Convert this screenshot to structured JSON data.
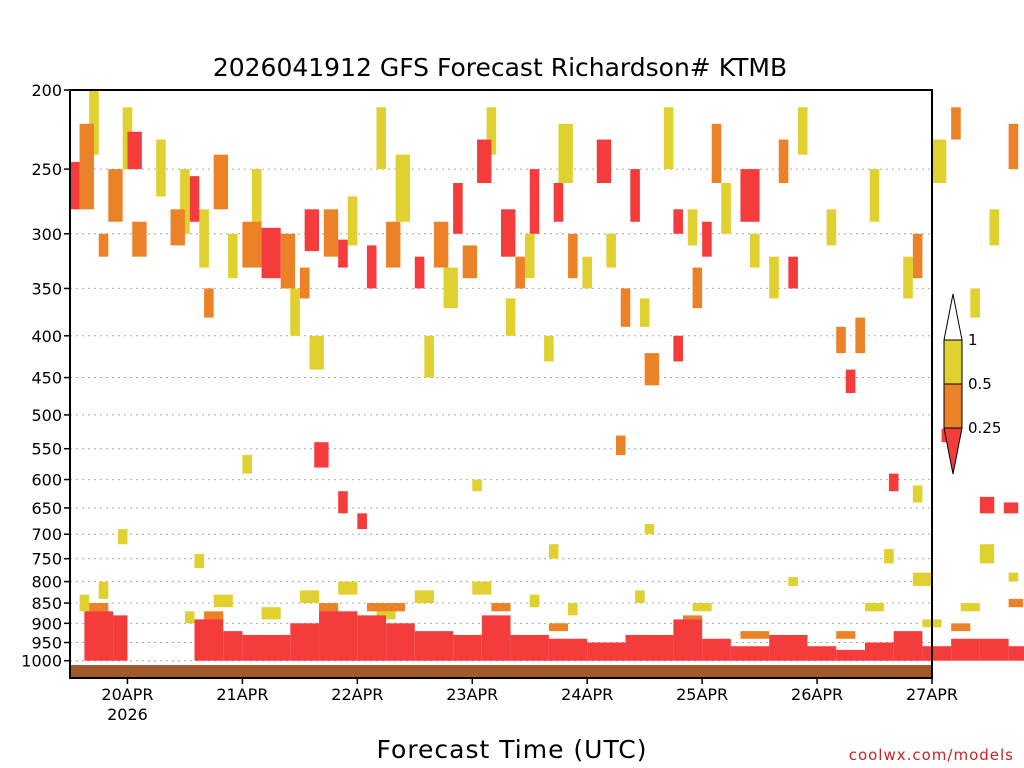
{
  "chart_data": {
    "type": "heatmap",
    "title": "2026041912 GFS Forecast Richardson# KTMB",
    "xlabel": "Forecast Time (UTC)",
    "ylabel": "",
    "credit": "coolwx.com/models",
    "y_scale": "pressure (log), inverted",
    "ylim": [
      1050,
      200
    ],
    "xlim_hours": [
      0,
      180
    ],
    "x_ticks": [
      {
        "label": "20APR",
        "sub": "2026",
        "hours": 12
      },
      {
        "label": "21APR",
        "sub": "",
        "hours": 36
      },
      {
        "label": "22APR",
        "sub": "",
        "hours": 60
      },
      {
        "label": "23APR",
        "sub": "",
        "hours": 84
      },
      {
        "label": "24APR",
        "sub": "",
        "hours": 108
      },
      {
        "label": "25APR",
        "sub": "",
        "hours": 132
      },
      {
        "label": "26APR",
        "sub": "",
        "hours": 156
      },
      {
        "label": "27APR",
        "sub": "",
        "hours": 180
      }
    ],
    "y_ticks": [
      {
        "label": "200",
        "value": 200
      },
      {
        "label": "250",
        "value": 250
      },
      {
        "label": "300",
        "value": 300
      },
      {
        "label": "350",
        "value": 350
      },
      {
        "label": "400",
        "value": 400
      },
      {
        "label": "450",
        "value": 450
      },
      {
        "label": "500",
        "value": 500
      },
      {
        "label": "550",
        "value": 550
      },
      {
        "label": "600",
        "value": 600
      },
      {
        "label": "650",
        "value": 650
      },
      {
        "label": "700",
        "value": 700
      },
      {
        "label": "750",
        "value": 750
      },
      {
        "label": "800",
        "value": 800
      },
      {
        "label": "850",
        "value": 850
      },
      {
        "label": "900",
        "value": 900
      },
      {
        "label": "950",
        "value": 950
      },
      {
        "label": "1000",
        "value": 1000
      }
    ],
    "grid": "dotted horizontal at each pressure level",
    "legend": {
      "placement": "right",
      "bins": [
        {
          "label": "",
          "color": "#ffffff",
          "range": "> 1"
        },
        {
          "label": "1",
          "color": "#e0d030",
          "range": "0.5 - 1"
        },
        {
          "label": "0.5",
          "color": "#ec8228",
          "range": "0.25 - 0.5"
        },
        {
          "label": "0.25",
          "color": "#f43c3c",
          "range": "< 0.25"
        }
      ]
    },
    "colors": {
      "yellow": "#e0d030",
      "orange": "#ec8228",
      "red": "#f43c3c",
      "ground": "#a05a2c"
    },
    "cells_note": "cell arrays: [hour_start, hour_end, pressure_top, pressure_bottom]",
    "cells": {
      "red": [
        [
          0,
          2,
          245,
          280
        ],
        [
          12,
          15,
          225,
          250
        ],
        [
          25,
          27,
          255,
          290
        ],
        [
          40,
          44,
          295,
          340
        ],
        [
          49,
          52,
          280,
          315
        ],
        [
          56,
          58,
          305,
          330
        ],
        [
          62,
          64,
          310,
          350
        ],
        [
          72,
          74,
          320,
          350
        ],
        [
          80,
          82,
          260,
          300
        ],
        [
          85,
          88,
          230,
          260
        ],
        [
          90,
          93,
          280,
          320
        ],
        [
          96,
          98,
          250,
          300
        ],
        [
          101,
          103,
          260,
          290
        ],
        [
          110,
          113,
          230,
          260
        ],
        [
          117,
          119,
          250,
          290
        ],
        [
          126,
          128,
          400,
          430
        ],
        [
          132,
          134,
          290,
          320
        ],
        [
          140,
          144,
          250,
          290
        ],
        [
          150,
          152,
          320,
          350
        ],
        [
          162,
          164,
          440,
          470
        ],
        [
          171,
          173,
          590,
          620
        ],
        [
          182,
          185,
          520,
          540
        ],
        [
          190,
          193,
          630,
          660
        ],
        [
          195,
          198,
          640,
          660
        ],
        [
          126,
          128,
          280,
          300
        ],
        [
          60,
          62,
          660,
          690
        ],
        [
          51,
          54,
          540,
          580
        ],
        [
          56,
          58,
          620,
          660
        ]
      ],
      "orange": [
        [
          2,
          5,
          220,
          280
        ],
        [
          8,
          11,
          250,
          290
        ],
        [
          13,
          16,
          290,
          320
        ],
        [
          21,
          24,
          280,
          310
        ],
        [
          30,
          33,
          240,
          280
        ],
        [
          36,
          40,
          290,
          330
        ],
        [
          44,
          47,
          300,
          350
        ],
        [
          53,
          56,
          280,
          320
        ],
        [
          66,
          69,
          290,
          330
        ],
        [
          76,
          79,
          290,
          330
        ],
        [
          82,
          85,
          310,
          340
        ],
        [
          93,
          95,
          320,
          350
        ],
        [
          104,
          106,
          300,
          340
        ],
        [
          115,
          117,
          350,
          390
        ],
        [
          120,
          123,
          420,
          460
        ],
        [
          130,
          132,
          330,
          370
        ],
        [
          134,
          136,
          220,
          260
        ],
        [
          148,
          150,
          230,
          260
        ],
        [
          164,
          166,
          380,
          420
        ],
        [
          176,
          178,
          300,
          340
        ],
        [
          184,
          186,
          210,
          230
        ],
        [
          196,
          198,
          220,
          250
        ],
        [
          114,
          116,
          530,
          560
        ],
        [
          160,
          162,
          390,
          420
        ],
        [
          6,
          8,
          300,
          320
        ],
        [
          28,
          30,
          350,
          380
        ],
        [
          48,
          50,
          330,
          360
        ]
      ],
      "yellow": [
        [
          4,
          6,
          200,
          240
        ],
        [
          11,
          13,
          210,
          250
        ],
        [
          18,
          20,
          230,
          270
        ],
        [
          23,
          25,
          250,
          300
        ],
        [
          27,
          29,
          280,
          330
        ],
        [
          33,
          35,
          300,
          340
        ],
        [
          38,
          40,
          250,
          300
        ],
        [
          46,
          48,
          350,
          400
        ],
        [
          50,
          53,
          400,
          440
        ],
        [
          58,
          60,
          270,
          310
        ],
        [
          64,
          66,
          210,
          250
        ],
        [
          68,
          71,
          240,
          290
        ],
        [
          74,
          76,
          400,
          450
        ],
        [
          78,
          81,
          330,
          370
        ],
        [
          87,
          89,
          210,
          240
        ],
        [
          91,
          93,
          360,
          400
        ],
        [
          95,
          97,
          300,
          340
        ],
        [
          99,
          101,
          400,
          430
        ],
        [
          102,
          105,
          220,
          260
        ],
        [
          107,
          109,
          320,
          350
        ],
        [
          112,
          114,
          300,
          330
        ],
        [
          119,
          121,
          360,
          390
        ],
        [
          124,
          126,
          210,
          250
        ],
        [
          129,
          131,
          280,
          310
        ],
        [
          136,
          138,
          260,
          300
        ],
        [
          142,
          144,
          300,
          330
        ],
        [
          146,
          148,
          320,
          360
        ],
        [
          152,
          154,
          210,
          240
        ],
        [
          158,
          160,
          280,
          310
        ],
        [
          167,
          169,
          250,
          290
        ],
        [
          174,
          176,
          320,
          360
        ],
        [
          180,
          183,
          230,
          260
        ],
        [
          188,
          190,
          350,
          380
        ],
        [
          192,
          194,
          280,
          310
        ],
        [
          10,
          12,
          690,
          720
        ],
        [
          26,
          28,
          740,
          770
        ],
        [
          36,
          38,
          560,
          590
        ],
        [
          84,
          86,
          600,
          620
        ],
        [
          100,
          102,
          720,
          750
        ],
        [
          120,
          122,
          680,
          700
        ],
        [
          170,
          172,
          730,
          760
        ],
        [
          176,
          178,
          610,
          640
        ],
        [
          190,
          193,
          720,
          760
        ],
        [
          196,
          198,
          780,
          800
        ]
      ],
      "lowred": [
        [
          3,
          9,
          870,
          1000
        ],
        [
          9,
          12,
          880,
          1000
        ],
        [
          26,
          32,
          890,
          1000
        ],
        [
          32,
          36,
          920,
          1000
        ],
        [
          36,
          46,
          930,
          1000
        ],
        [
          46,
          52,
          900,
          1000
        ],
        [
          52,
          60,
          870,
          1000
        ],
        [
          60,
          66,
          880,
          1000
        ],
        [
          66,
          72,
          900,
          1000
        ],
        [
          72,
          80,
          920,
          1000
        ],
        [
          80,
          86,
          930,
          1000
        ],
        [
          86,
          92,
          880,
          1000
        ],
        [
          92,
          100,
          930,
          1000
        ],
        [
          100,
          108,
          940,
          1000
        ],
        [
          108,
          116,
          950,
          1000
        ],
        [
          116,
          126,
          930,
          1000
        ],
        [
          126,
          132,
          890,
          1000
        ],
        [
          132,
          138,
          940,
          1000
        ],
        [
          138,
          146,
          960,
          1000
        ],
        [
          146,
          154,
          930,
          1000
        ],
        [
          154,
          160,
          960,
          1000
        ],
        [
          160,
          166,
          970,
          1000
        ],
        [
          166,
          172,
          950,
          1000
        ],
        [
          172,
          178,
          920,
          1000
        ],
        [
          178,
          184,
          960,
          1000
        ],
        [
          184,
          190,
          940,
          1000
        ],
        [
          190,
          196,
          940,
          1000
        ],
        [
          196,
          200,
          960,
          1000
        ]
      ],
      "loworange": [
        [
          4,
          8,
          850,
          880
        ],
        [
          28,
          32,
          870,
          900
        ],
        [
          52,
          56,
          850,
          880
        ],
        [
          62,
          70,
          850,
          870
        ],
        [
          88,
          92,
          850,
          870
        ],
        [
          100,
          104,
          900,
          920
        ],
        [
          128,
          132,
          880,
          900
        ],
        [
          140,
          146,
          920,
          940
        ],
        [
          160,
          164,
          920,
          940
        ],
        [
          184,
          188,
          900,
          920
        ],
        [
          196,
          199,
          840,
          860
        ]
      ],
      "lowyellow": [
        [
          2,
          4,
          830,
          870
        ],
        [
          6,
          8,
          800,
          840
        ],
        [
          24,
          26,
          870,
          900
        ],
        [
          30,
          34,
          830,
          860
        ],
        [
          40,
          44,
          860,
          890
        ],
        [
          48,
          52,
          820,
          850
        ],
        [
          56,
          60,
          800,
          830
        ],
        [
          64,
          68,
          860,
          890
        ],
        [
          72,
          76,
          820,
          850
        ],
        [
          84,
          88,
          800,
          830
        ],
        [
          96,
          98,
          830,
          860
        ],
        [
          104,
          106,
          850,
          880
        ],
        [
          118,
          120,
          820,
          850
        ],
        [
          130,
          134,
          850,
          870
        ],
        [
          150,
          152,
          790,
          810
        ],
        [
          166,
          170,
          850,
          870
        ],
        [
          176,
          180,
          780,
          810
        ],
        [
          178,
          182,
          890,
          910
        ],
        [
          186,
          190,
          850,
          870
        ]
      ]
    }
  }
}
